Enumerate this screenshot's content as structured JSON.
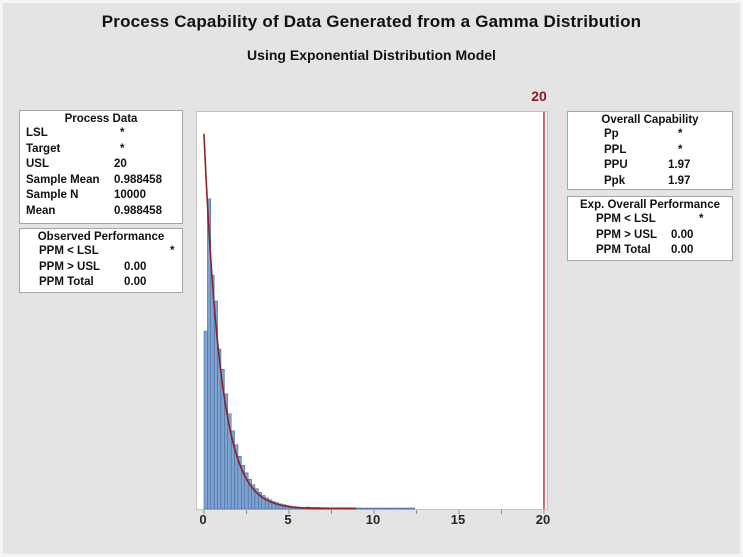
{
  "title": "Process Capability of Data Generated from a Gamma Distribution",
  "subtitle": "Using Exponential Distribution Model",
  "panels": {
    "process_data": {
      "header": "Process Data",
      "rows": [
        {
          "label": "LSL",
          "value": "*"
        },
        {
          "label": "Target",
          "value": "*"
        },
        {
          "label": "USL",
          "value": "20"
        },
        {
          "label": "Sample Mean",
          "value": "0.988458"
        },
        {
          "label": "Sample N",
          "value": "10000"
        },
        {
          "label": "Mean",
          "value": "0.988458"
        }
      ]
    },
    "observed_performance": {
      "header": "Observed Performance",
      "rows": [
        {
          "label": "PPM < LSL",
          "value": "*"
        },
        {
          "label": "PPM > USL",
          "value": "0.00"
        },
        {
          "label": "PPM Total",
          "value": "0.00"
        }
      ]
    },
    "overall_capability": {
      "header": "Overall Capability",
      "rows": [
        {
          "label": "Pp",
          "value": "*"
        },
        {
          "label": "PPL",
          "value": "*"
        },
        {
          "label": "PPU",
          "value": "1.97"
        },
        {
          "label": "Ppk",
          "value": "1.97"
        }
      ]
    },
    "exp_overall_performance": {
      "header": "Exp. Overall Performance",
      "rows": [
        {
          "label": "PPM < LSL",
          "value": "*"
        },
        {
          "label": "PPM > USL",
          "value": "0.00"
        },
        {
          "label": "PPM Total",
          "value": "0.00"
        }
      ]
    }
  },
  "chart_data": {
    "type": "bar",
    "subtype": "capability-histogram-with-exponential-fit",
    "title": "Process Capability of Data Generated from a Gamma Distribution",
    "subtitle": "Using Exponential Distribution Model",
    "xlabel": "",
    "ylabel": "",
    "xlim": [
      -0.41,
      20.29
    ],
    "grid": false,
    "x_tick_values": [
      0,
      2.5,
      5,
      7.5,
      10,
      12.5,
      15,
      17.5,
      20
    ],
    "x_tick_labels": [
      "0",
      "5",
      "10",
      "15",
      "20"
    ],
    "x_label_values": [
      0,
      5,
      10,
      15,
      20
    ],
    "bin_start": 0,
    "bin_width": 0.2,
    "bar_heights_fraction": [
      0.448,
      0.781,
      0.589,
      0.524,
      0.403,
      0.352,
      0.29,
      0.24,
      0.197,
      0.162,
      0.133,
      0.11,
      0.091,
      0.075,
      0.061,
      0.051,
      0.042,
      0.034,
      0.028,
      0.023,
      0.019,
      0.016,
      0.013,
      0.011,
      0.009,
      0.0074,
      0.0061,
      0.005,
      0.0045,
      0.004,
      0.005,
      0.004,
      0.004,
      0.004,
      0.0035,
      0.0035,
      0.003,
      0.003,
      0.003,
      0.003,
      0.003,
      0.0028,
      0.0028,
      0.0028,
      0.0026,
      0.0026,
      0.0025,
      0.0025,
      0.0025,
      0.0025,
      0.0025,
      0.0025,
      0.0025,
      0.0025,
      0.0025,
      0.0025,
      0.0025,
      0.0025,
      0.0025,
      0.0025,
      0.0025,
      0.0025
    ],
    "fit_curve": {
      "distribution": "exponential",
      "mean": 0.988458,
      "peak_fraction": 0.945,
      "x_range": [
        0,
        8.95
      ]
    },
    "usl": {
      "value": 20,
      "label": "20"
    },
    "colors": {
      "bar_fill": "#7ea3d3",
      "bar_edge": "#40618f",
      "curve": "#8b2226",
      "usl_line": "#c8242c",
      "usl_label": "#8b1a1e",
      "tick": "#8c8c8c",
      "plot_border": "#c2c2c2",
      "background": "#e4e4e4"
    }
  }
}
